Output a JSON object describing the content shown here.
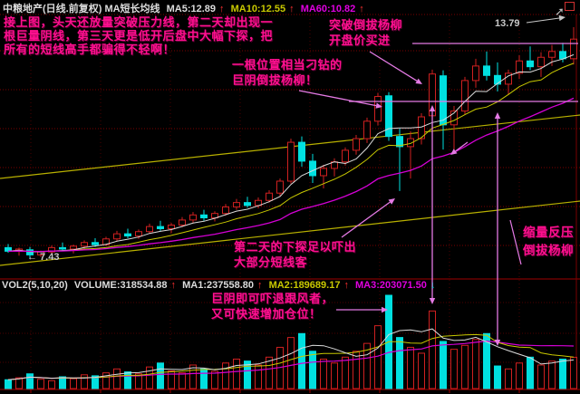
{
  "header": {
    "title": "中粮地产(日线.前复权) MA短长均线",
    "ma5": "MA5:12.89",
    "ma10": "MA10:12.55",
    "ma60": "MA60:10.82",
    "up_arrow": "↑"
  },
  "volume_header": {
    "indicator": "VOL2(5,10,20)",
    "volume": "VOLUME:318534.88",
    "ma1": "MA1:237558.80",
    "ma2": "MA2:189689.17",
    "ma3": "MA3:203071.50",
    "up_arrow": "↑",
    "down_arrow": "↓"
  },
  "annotations": {
    "intro": [
      "接上图，头天还放量突破压力线，第二天却出现一",
      "根巨量阴线，第三天更是低开后盘中大幅下探，把",
      "所有的短线高手都骗得不轻啊！"
    ],
    "tricky": [
      "一根位置相当刁钻的",
      "巨阴倒拔杨柳！"
    ],
    "breakout": [
      "突破倒拔杨柳",
      "开盘价买进"
    ],
    "probe": [
      "第二天的下探足以吓出",
      "大部分短线客"
    ],
    "shrink": [
      "缩量反压",
      "倒拔杨柳"
    ],
    "volnote": [
      "巨阴即可吓退跟风者，",
      "又可快速增加仓位！"
    ],
    "high_label": "13.79",
    "low_label": "← 7.43"
  },
  "colors": {
    "background": "#000000",
    "up_candle": "#d02020",
    "down_candle": "#00e0e0",
    "ma_fast": "#dcdcdc",
    "ma_mid": "#c8c800",
    "ma_slow": "#d400d4",
    "channel_line": "#b8b000",
    "grid": "#7a0000",
    "grid_faint": "#4c0000",
    "frame": "#a00000",
    "annotation_text": "#ff0f8f",
    "annotation_line": "#e47ae4",
    "label_gray": "#c8c8c8",
    "arrow_up_red": "#ff3030",
    "arrow_down_teal": "#00c8c8"
  },
  "chart_data": {
    "type": "candlestick",
    "panes": [
      "price",
      "volume"
    ],
    "title": "中粮地产 日线 前复权",
    "legend_price": [
      "MA5",
      "MA10",
      "MA60"
    ],
    "legend_volume": [
      "MA1(5)",
      "MA2(10)",
      "MA3(20)"
    ],
    "high_marker": 13.79,
    "low_marker": 7.43,
    "last_volume": 318534.88,
    "volume_ma": [
      237558.8,
      189689.17,
      203071.5
    ],
    "price_ma": [
      12.89,
      12.55,
      10.82
    ],
    "resistance_levels": [
      13.34,
      11.74
    ],
    "trendlines": [
      {
        "name": "upper-channel",
        "color": "yellow"
      },
      {
        "name": "lower-channel",
        "color": "yellow"
      }
    ],
    "volume_max": 950000,
    "candles": [
      [
        7.72,
        7.82,
        7.58,
        7.62,
        90000
      ],
      [
        7.62,
        7.72,
        7.5,
        7.68,
        110000
      ],
      [
        7.66,
        7.74,
        7.43,
        7.52,
        150000
      ],
      [
        7.52,
        7.64,
        7.46,
        7.6,
        95000
      ],
      [
        7.6,
        7.78,
        7.54,
        7.72,
        80000
      ],
      [
        7.72,
        7.86,
        7.62,
        7.68,
        120000
      ],
      [
        7.68,
        7.8,
        7.56,
        7.76,
        100000
      ],
      [
        7.76,
        7.92,
        7.68,
        7.86,
        140000
      ],
      [
        7.86,
        7.98,
        7.74,
        7.8,
        130000
      ],
      [
        7.8,
        8.02,
        7.76,
        7.96,
        160000
      ],
      [
        7.96,
        8.18,
        7.9,
        8.1,
        200000
      ],
      [
        8.1,
        8.24,
        7.98,
        8.04,
        170000
      ],
      [
        8.04,
        8.22,
        7.96,
        8.16,
        150000
      ],
      [
        8.16,
        8.38,
        8.1,
        8.3,
        220000
      ],
      [
        8.3,
        8.46,
        8.18,
        8.24,
        260000
      ],
      [
        8.24,
        8.4,
        8.12,
        8.34,
        180000
      ],
      [
        8.34,
        8.56,
        8.28,
        8.48,
        160000
      ],
      [
        8.48,
        8.7,
        8.4,
        8.62,
        240000
      ],
      [
        8.62,
        8.76,
        8.46,
        8.54,
        200000
      ],
      [
        8.54,
        8.72,
        8.44,
        8.66,
        175000
      ],
      [
        8.66,
        8.92,
        8.6,
        8.84,
        260000
      ],
      [
        8.84,
        9.06,
        8.76,
        8.96,
        300000
      ],
      [
        8.96,
        9.12,
        8.82,
        8.88,
        280000
      ],
      [
        8.88,
        9.1,
        8.8,
        9.02,
        240000
      ],
      [
        9.02,
        9.3,
        8.96,
        9.22,
        320000
      ],
      [
        9.22,
        9.62,
        9.14,
        9.55,
        420000
      ],
      [
        9.55,
        10.72,
        9.48,
        10.62,
        520000
      ],
      [
        10.62,
        10.78,
        9.95,
        10.1,
        560000
      ],
      [
        10.1,
        10.3,
        9.5,
        9.7,
        380000
      ],
      [
        9.7,
        10.0,
        9.35,
        9.9,
        300000
      ],
      [
        9.9,
        10.18,
        9.68,
        10.08,
        260000
      ],
      [
        10.08,
        10.48,
        9.98,
        10.4,
        320000
      ],
      [
        10.4,
        10.82,
        10.28,
        10.72,
        380000
      ],
      [
        10.72,
        11.3,
        10.6,
        11.2,
        460000
      ],
      [
        11.2,
        11.98,
        11.08,
        11.88,
        640000
      ],
      [
        11.9,
        12.0,
        10.66,
        10.78,
        950000
      ],
      [
        10.78,
        11.0,
        9.28,
        10.5,
        520000
      ],
      [
        10.5,
        10.92,
        9.62,
        10.72,
        420000
      ],
      [
        10.72,
        11.42,
        10.56,
        11.32,
        360000
      ],
      [
        11.35,
        12.62,
        11.25,
        12.5,
        790000
      ],
      [
        12.45,
        12.6,
        10.42,
        11.1,
        480000
      ],
      [
        11.1,
        11.62,
        10.32,
        11.48,
        400000
      ],
      [
        11.48,
        12.42,
        11.38,
        12.32,
        440000
      ],
      [
        12.32,
        12.92,
        12.12,
        12.72,
        500000
      ],
      [
        12.72,
        13.12,
        12.32,
        12.46,
        560000
      ],
      [
        12.46,
        12.82,
        12.02,
        12.22,
        230000
      ],
      [
        12.22,
        12.62,
        11.92,
        12.52,
        200000
      ],
      [
        12.52,
        13.02,
        12.36,
        12.86,
        260000
      ],
      [
        12.86,
        13.26,
        12.6,
        12.7,
        320000
      ],
      [
        12.7,
        13.1,
        12.42,
        12.96,
        240000
      ],
      [
        12.96,
        13.3,
        12.72,
        13.12,
        280000
      ],
      [
        13.12,
        13.36,
        12.82,
        12.92,
        300000
      ],
      [
        12.92,
        13.79,
        12.76,
        13.46,
        318535
      ]
    ]
  }
}
